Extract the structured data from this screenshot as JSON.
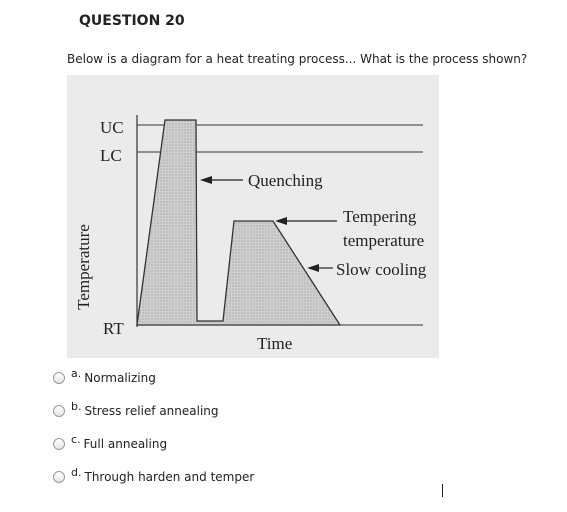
{
  "question": {
    "title": "QUESTION 20",
    "text": "Below is a diagram for a heat treating process... What is the process shown?"
  },
  "diagram": {
    "y_label": "Temperature",
    "x_label": "Time",
    "levels": [
      "UC",
      "LC",
      "RT"
    ],
    "annotations": {
      "quenching": "Quenching",
      "tempering_line1": "Tempering",
      "tempering_line2": "temperature",
      "slow_cooling": "Slow cooling"
    },
    "colors": {
      "fill": "#c9c9c9",
      "background": "#ebebeb",
      "line": "#333333"
    }
  },
  "choices": [
    {
      "letter": "a.",
      "text": "Normalizing"
    },
    {
      "letter": "b.",
      "text": "Stress relief annealing"
    },
    {
      "letter": "c.",
      "text": "Full annealing"
    },
    {
      "letter": "d.",
      "text": "Through harden and temper"
    }
  ]
}
